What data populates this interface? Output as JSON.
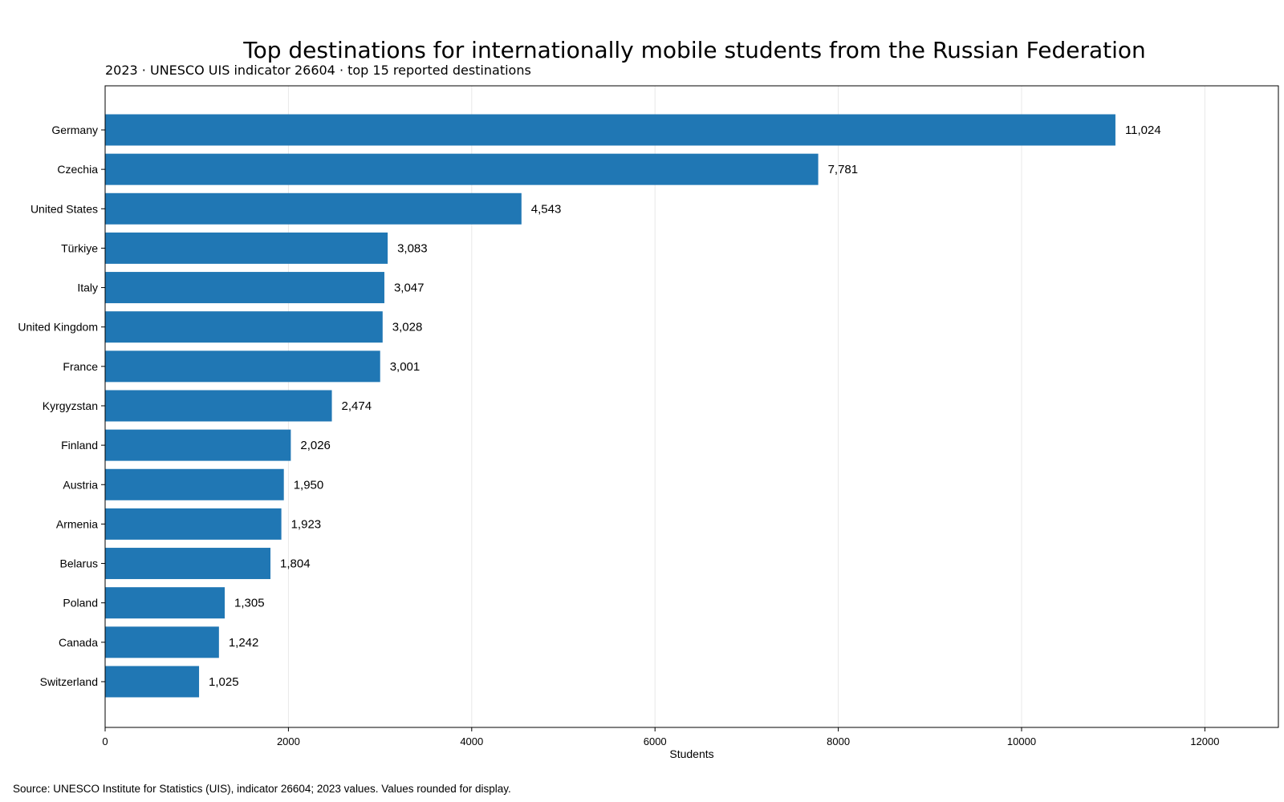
{
  "chart_data": {
    "type": "bar",
    "orientation": "horizontal",
    "title": "Top destinations for internationally mobile students from the Russian Federation",
    "subtitle": "2023 · UNESCO UIS indicator 26604 · top 15 reported destinations",
    "xlabel": "Students",
    "ylabel": "",
    "xlim": [
      0,
      12800
    ],
    "xticks": [
      0,
      2000,
      4000,
      6000,
      8000,
      10000,
      12000
    ],
    "grid": "vertical",
    "bar_color": "#2077b4",
    "categories": [
      "Germany",
      "Czechia",
      "United States",
      "Türkiye",
      "Italy",
      "United Kingdom",
      "France",
      "Kyrgyzstan",
      "Finland",
      "Austria",
      "Armenia",
      "Belarus",
      "Poland",
      "Canada",
      "Switzerland"
    ],
    "values": [
      11024,
      7781,
      4543,
      3083,
      3047,
      3028,
      3001,
      2474,
      2026,
      1950,
      1923,
      1804,
      1305,
      1242,
      1025
    ],
    "data_labels": [
      "11,024",
      "7,781",
      "4,543",
      "3,083",
      "3,047",
      "3,028",
      "3,001",
      "2,474",
      "2,026",
      "1,950",
      "1,923",
      "1,804",
      "1,305",
      "1,242",
      "1,025"
    ]
  },
  "source_note": "Source: UNESCO Institute for Statistics (UIS), indicator 26604; 2023 values. Values rounded for display."
}
